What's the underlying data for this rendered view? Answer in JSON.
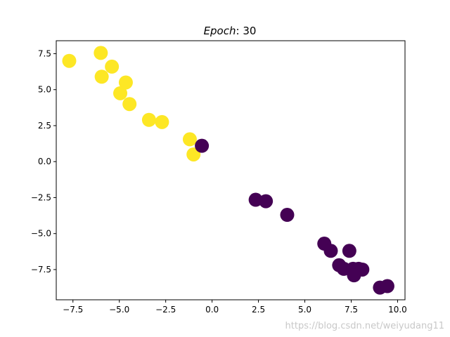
{
  "chart_data": {
    "type": "scatter",
    "title_italic": "Epoch",
    "title_rest": ": 30",
    "xlabel": "",
    "ylabel": "",
    "xlim": [
      -8.4,
      10.4
    ],
    "ylim": [
      -9.6,
      8.4
    ],
    "xticks": [
      {
        "value": -7.5,
        "label": "−7.5"
      },
      {
        "value": -5.0,
        "label": "−5.0"
      },
      {
        "value": -2.5,
        "label": "−2.5"
      },
      {
        "value": 0.0,
        "label": "0.0"
      },
      {
        "value": 2.5,
        "label": "2.5"
      },
      {
        "value": 5.0,
        "label": "5.0"
      },
      {
        "value": 7.5,
        "label": "7.5"
      },
      {
        "value": 10.0,
        "label": "10.0"
      }
    ],
    "yticks": [
      {
        "value": 7.5,
        "label": "7.5"
      },
      {
        "value": 5.0,
        "label": "5.0"
      },
      {
        "value": 2.5,
        "label": "2.5"
      },
      {
        "value": 0.0,
        "label": "0.0"
      },
      {
        "value": -2.5,
        "label": "−2.5"
      },
      {
        "value": -5.0,
        "label": "−5.0"
      },
      {
        "value": -7.5,
        "label": "−7.5"
      }
    ],
    "grid": false,
    "series": [
      {
        "color": "#fde725",
        "points": [
          {
            "x": -7.7,
            "y": 7.0
          },
          {
            "x": -6.0,
            "y": 7.55
          },
          {
            "x": -5.4,
            "y": 6.6
          },
          {
            "x": -5.95,
            "y": 5.9
          },
          {
            "x": -4.65,
            "y": 5.5
          },
          {
            "x": -4.95,
            "y": 4.75
          },
          {
            "x": -4.45,
            "y": 4.0
          },
          {
            "x": -3.4,
            "y": 2.9
          },
          {
            "x": -2.7,
            "y": 2.75
          },
          {
            "x": -1.2,
            "y": 1.55
          },
          {
            "x": -1.0,
            "y": 0.5
          }
        ]
      },
      {
        "color": "#440154",
        "points": [
          {
            "x": -0.55,
            "y": 1.1
          },
          {
            "x": 2.35,
            "y": -2.65
          },
          {
            "x": 2.9,
            "y": -2.75
          },
          {
            "x": 4.05,
            "y": -3.7
          },
          {
            "x": 6.05,
            "y": -5.7
          },
          {
            "x": 6.4,
            "y": -6.2
          },
          {
            "x": 7.4,
            "y": -6.2
          },
          {
            "x": 6.85,
            "y": -7.2
          },
          {
            "x": 7.1,
            "y": -7.45
          },
          {
            "x": 7.6,
            "y": -7.45
          },
          {
            "x": 7.9,
            "y": -7.45
          },
          {
            "x": 8.1,
            "y": -7.5
          },
          {
            "x": 7.65,
            "y": -7.9
          },
          {
            "x": 9.05,
            "y": -8.75
          },
          {
            "x": 9.45,
            "y": -8.65
          }
        ]
      }
    ]
  },
  "watermark": "https://blog.csdn.net/weiyudang11"
}
